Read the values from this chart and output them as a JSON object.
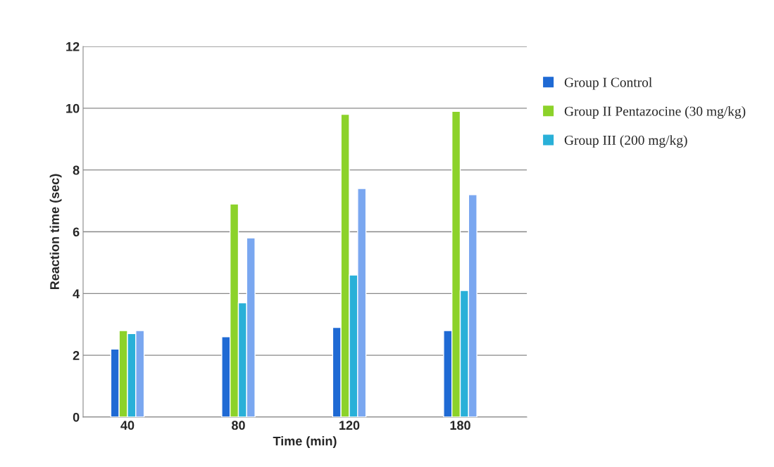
{
  "chart_data": {
    "type": "bar",
    "xlabel": "Time (min)",
    "ylabel": "Reaction time (sec)",
    "categories": [
      "40",
      "80",
      "120",
      "180"
    ],
    "series": [
      {
        "name": "Group I Control",
        "color": "#1f6ad4",
        "values": [
          2.2,
          2.6,
          2.9,
          2.8
        ]
      },
      {
        "name": "Group II Pentazocine (30 mg/kg)",
        "color": "#8cd22a",
        "values": [
          2.8,
          6.9,
          9.8,
          9.9
        ]
      },
      {
        "name": "Group III (200 mg/kg)",
        "color": "#29b0d8",
        "values": [
          2.7,
          3.7,
          4.6,
          4.1
        ]
      },
      {
        "color": "#7aa7f0",
        "values": [
          2.8,
          5.8,
          7.4,
          7.2
        ]
      }
    ],
    "ylim": [
      0,
      12
    ],
    "yticks": [
      0,
      2,
      4,
      6,
      8,
      10,
      12
    ],
    "grid": "y",
    "legend": "top right"
  }
}
